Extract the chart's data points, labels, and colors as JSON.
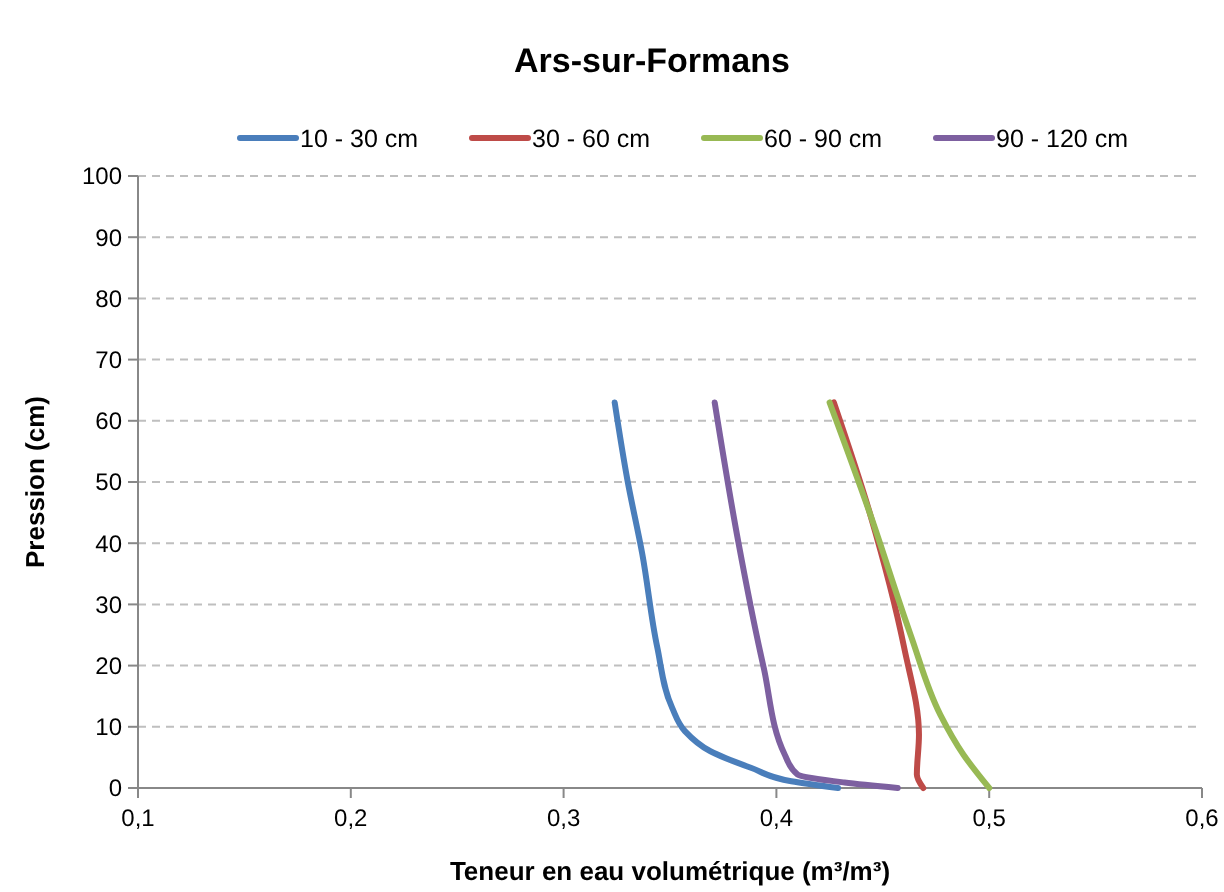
{
  "chart_data": {
    "type": "line",
    "title": "Ars-sur-Formans",
    "xlabel": "Teneur en eau volumétrique (m³/m³)",
    "ylabel": "Pression (cm)",
    "xlim": [
      0.1,
      0.6
    ],
    "xticks": [
      {
        "value": 0.1,
        "label": "0,1"
      },
      {
        "value": 0.2,
        "label": "0,2"
      },
      {
        "value": 0.3,
        "label": "0,3"
      },
      {
        "value": 0.4,
        "label": "0,4"
      },
      {
        "value": 0.5,
        "label": "0,5"
      },
      {
        "value": 0.6,
        "label": "0,6"
      }
    ],
    "ylim": [
      0,
      100
    ],
    "yticks": [
      0,
      10,
      20,
      30,
      40,
      50,
      60,
      70,
      80,
      90,
      100
    ],
    "grid": "y",
    "legend": "top",
    "series": [
      {
        "name": "10 - 30 cm",
        "color": "#4a7ebb",
        "x": [
          0.324,
          0.33,
          0.337,
          0.344,
          0.351,
          0.357,
          0.369,
          0.388,
          0.407,
          0.429
        ],
        "values": [
          63,
          50.3,
          38.2,
          23,
          13.1,
          9.3,
          6,
          3.3,
          1.1,
          0
        ]
      },
      {
        "name": "30 - 60 cm",
        "color": "#be4b48",
        "x": [
          0.427,
          0.444,
          0.46,
          0.467,
          0.466,
          0.469
        ],
        "values": [
          63,
          44.8,
          23,
          8.7,
          2.2,
          0
        ]
      },
      {
        "name": "60 - 90 cm",
        "color": "#98b954",
        "x": [
          0.425,
          0.444,
          0.463,
          0.477,
          0.488,
          0.5
        ],
        "values": [
          63,
          44.8,
          25.1,
          12,
          5.4,
          0
        ]
      },
      {
        "name": "90 - 120 cm",
        "color": "#7d60a0",
        "x": [
          0.371,
          0.382,
          0.394,
          0.404,
          0.41,
          0.432,
          0.457
        ],
        "values": [
          63,
          40.4,
          19.7,
          5.4,
          2.2,
          0.9,
          0
        ]
      }
    ]
  }
}
